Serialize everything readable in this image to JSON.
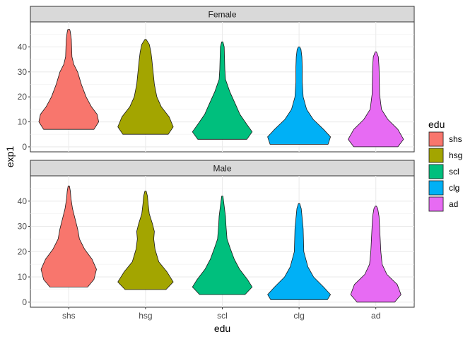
{
  "chart_data": {
    "type": "violin",
    "xlabel": "edu",
    "ylabel": "exp1",
    "categories": [
      "shs",
      "hsg",
      "scl",
      "clg",
      "ad"
    ],
    "ylim": [
      -2,
      50
    ],
    "yticks": [
      0,
      10,
      20,
      30,
      40
    ],
    "grid": true,
    "legend": {
      "title": "edu",
      "placement": "right",
      "entries": [
        {
          "label": "shs",
          "color": "#F8766D"
        },
        {
          "label": "hsg",
          "color": "#A3A500"
        },
        {
          "label": "scl",
          "color": "#00BF7D"
        },
        {
          "label": "clg",
          "color": "#00B0F6"
        },
        {
          "label": "ad",
          "color": "#E76BF3"
        }
      ]
    },
    "facets": [
      {
        "label": "Female",
        "violins": [
          {
            "category": "shs",
            "min": 7,
            "max": 47,
            "profile": [
              [
                7,
                0.8
              ],
              [
                10,
                0.95
              ],
              [
                13,
                0.9
              ],
              [
                16,
                0.72
              ],
              [
                20,
                0.55
              ],
              [
                25,
                0.4
              ],
              [
                30,
                0.28
              ],
              [
                33,
                0.16
              ],
              [
                36,
                0.1
              ],
              [
                40,
                0.09
              ],
              [
                43,
                0.08
              ],
              [
                46,
                0.05
              ],
              [
                47,
                0.03
              ]
            ]
          },
          {
            "category": "hsg",
            "min": 5,
            "max": 43,
            "profile": [
              [
                5,
                0.72
              ],
              [
                8,
                0.88
              ],
              [
                12,
                0.75
              ],
              [
                16,
                0.5
              ],
              [
                20,
                0.36
              ],
              [
                25,
                0.28
              ],
              [
                30,
                0.24
              ],
              [
                35,
                0.2
              ],
              [
                38,
                0.17
              ],
              [
                41,
                0.12
              ],
              [
                43,
                0.02
              ]
            ]
          },
          {
            "category": "scl",
            "min": 3,
            "max": 42,
            "profile": [
              [
                3,
                0.78
              ],
              [
                6,
                0.95
              ],
              [
                9,
                0.78
              ],
              [
                13,
                0.56
              ],
              [
                17,
                0.42
              ],
              [
                22,
                0.24
              ],
              [
                27,
                0.1
              ],
              [
                31,
                0.08
              ],
              [
                36,
                0.07
              ],
              [
                40,
                0.06
              ],
              [
                42,
                0.02
              ]
            ]
          },
          {
            "category": "clg",
            "min": 1,
            "max": 40,
            "profile": [
              [
                1,
                0.92
              ],
              [
                4,
                1.0
              ],
              [
                7,
                0.78
              ],
              [
                11,
                0.45
              ],
              [
                15,
                0.24
              ],
              [
                20,
                0.13
              ],
              [
                26,
                0.1
              ],
              [
                32,
                0.1
              ],
              [
                36,
                0.09
              ],
              [
                39,
                0.06
              ],
              [
                40,
                0.02
              ]
            ]
          },
          {
            "category": "ad",
            "min": 0,
            "max": 38,
            "profile": [
              [
                0,
                0.7
              ],
              [
                3,
                0.88
              ],
              [
                7,
                0.7
              ],
              [
                11,
                0.38
              ],
              [
                15,
                0.18
              ],
              [
                21,
                0.12
              ],
              [
                27,
                0.11
              ],
              [
                32,
                0.1
              ],
              [
                36,
                0.08
              ],
              [
                38,
                0.02
              ]
            ]
          }
        ]
      },
      {
        "label": "Male",
        "violins": [
          {
            "category": "shs",
            "min": 6,
            "max": 46,
            "profile": [
              [
                6,
                0.6
              ],
              [
                9,
                0.8
              ],
              [
                13,
                0.88
              ],
              [
                17,
                0.74
              ],
              [
                21,
                0.5
              ],
              [
                25,
                0.34
              ],
              [
                29,
                0.28
              ],
              [
                33,
                0.2
              ],
              [
                37,
                0.12
              ],
              [
                41,
                0.07
              ],
              [
                44,
                0.05
              ],
              [
                46,
                0.02
              ]
            ]
          },
          {
            "category": "hsg",
            "min": 5,
            "max": 44,
            "profile": [
              [
                5,
                0.65
              ],
              [
                8,
                0.88
              ],
              [
                12,
                0.68
              ],
              [
                16,
                0.42
              ],
              [
                21,
                0.3
              ],
              [
                25,
                0.26
              ],
              [
                28,
                0.28
              ],
              [
                31,
                0.22
              ],
              [
                35,
                0.12
              ],
              [
                39,
                0.08
              ],
              [
                42,
                0.06
              ],
              [
                44,
                0.02
              ]
            ]
          },
          {
            "category": "scl",
            "min": 3,
            "max": 42,
            "profile": [
              [
                3,
                0.72
              ],
              [
                6,
                0.95
              ],
              [
                9,
                0.8
              ],
              [
                13,
                0.55
              ],
              [
                17,
                0.38
              ],
              [
                21,
                0.26
              ],
              [
                25,
                0.15
              ],
              [
                30,
                0.12
              ],
              [
                34,
                0.1
              ],
              [
                38,
                0.06
              ],
              [
                42,
                0.02
              ]
            ]
          },
          {
            "category": "clg",
            "min": 1,
            "max": 39,
            "profile": [
              [
                1,
                0.9
              ],
              [
                3,
                1.0
              ],
              [
                6,
                0.78
              ],
              [
                10,
                0.46
              ],
              [
                14,
                0.28
              ],
              [
                20,
                0.15
              ],
              [
                25,
                0.14
              ],
              [
                29,
                0.13
              ],
              [
                33,
                0.1
              ],
              [
                37,
                0.07
              ],
              [
                39,
                0.02
              ]
            ]
          },
          {
            "category": "ad",
            "min": 0,
            "max": 38,
            "profile": [
              [
                0,
                0.6
              ],
              [
                3,
                0.8
              ],
              [
                7,
                0.68
              ],
              [
                11,
                0.35
              ],
              [
                15,
                0.2
              ],
              [
                20,
                0.16
              ],
              [
                25,
                0.14
              ],
              [
                30,
                0.12
              ],
              [
                34,
                0.1
              ],
              [
                37,
                0.06
              ],
              [
                38,
                0.02
              ]
            ]
          }
        ]
      }
    ]
  }
}
